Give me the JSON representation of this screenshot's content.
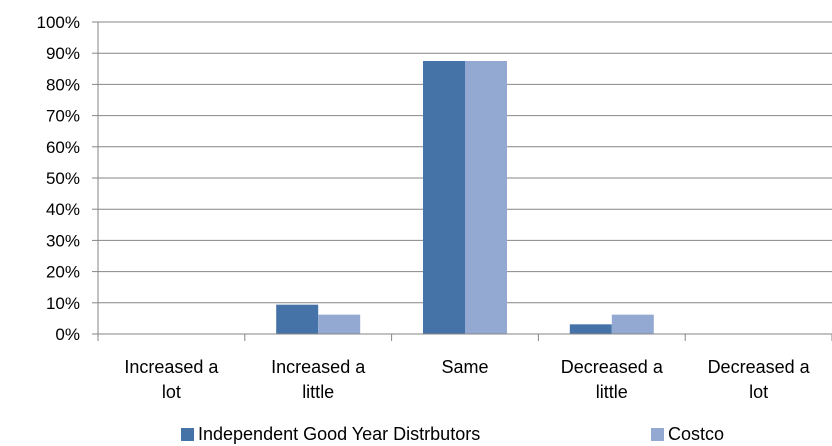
{
  "chart_data": {
    "type": "bar",
    "categories": [
      [
        "Increased a",
        "lot"
      ],
      [
        "Increased a",
        "little"
      ],
      [
        "Same"
      ],
      [
        "Decreased a",
        "little"
      ],
      [
        "Decreased a",
        "lot"
      ]
    ],
    "series": [
      {
        "name": "Independent Good Year Distrbutors",
        "color": "#4573A7",
        "values": [
          0,
          9.4,
          87.5,
          3.1,
          0
        ]
      },
      {
        "name": "Costco",
        "color": "#93A9D1",
        "values": [
          0,
          6.2,
          87.5,
          6.2,
          0
        ]
      }
    ],
    "ylim": [
      0,
      100
    ],
    "yticks": [
      "0%",
      "10%",
      "20%",
      "30%",
      "40%",
      "50%",
      "60%",
      "70%",
      "80%",
      "90%",
      "100%"
    ],
    "grid": true,
    "legend_position": "bottom"
  }
}
